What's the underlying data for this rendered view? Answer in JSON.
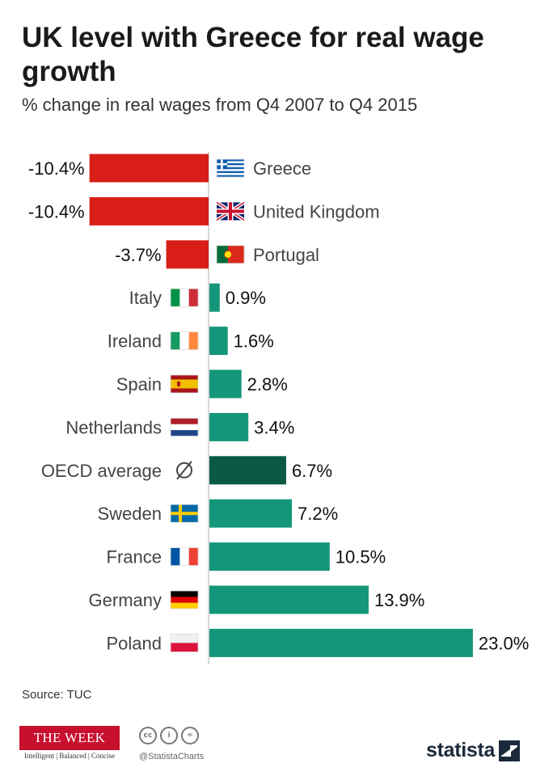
{
  "header": {
    "title": "UK level with Greece for real wage growth",
    "subtitle": "% change in real wages from Q4 2007 to Q4 2015"
  },
  "chart_data": {
    "type": "bar",
    "orientation": "horizontal",
    "title": "UK level with Greece for real wage growth",
    "subtitle": "% change in real wages from Q4 2007 to Q4 2015",
    "xlabel": "",
    "ylabel": "",
    "value_suffix": "%",
    "categories": [
      "Greece",
      "United Kingdom",
      "Portugal",
      "Italy",
      "Ireland",
      "Spain",
      "Netherlands",
      "OECD average",
      "Sweden",
      "France",
      "Germany",
      "Poland"
    ],
    "values": [
      -10.4,
      -10.4,
      -3.7,
      0.9,
      1.6,
      2.8,
      3.4,
      6.7,
      7.2,
      10.5,
      13.9,
      23.0
    ],
    "value_labels": [
      "-10.4%",
      "-10.4%",
      "-3.7%",
      "0.9%",
      "1.6%",
      "2.8%",
      "3.4%",
      "6.7%",
      "7.2%",
      "10.5%",
      "13.9%",
      "23.0%"
    ],
    "flags": [
      "greece",
      "uk",
      "portugal",
      "italy",
      "ireland",
      "spain",
      "netherlands",
      "oecd",
      "sweden",
      "france",
      "germany",
      "poland"
    ],
    "colors": {
      "negative": "#d91e18",
      "positive": "#14967a",
      "highlight": "#0b5a46",
      "highlight_category": "OECD average",
      "axis": "#cccccc"
    }
  },
  "footer": {
    "source": "Source: TUC",
    "publisher_name": "THE WEEK",
    "publisher_tagline": "Intelligent | Balanced | Concise",
    "license_icons": [
      "cc",
      "i",
      "="
    ],
    "social_handle": "@StatistaCharts",
    "brand": "statista"
  }
}
